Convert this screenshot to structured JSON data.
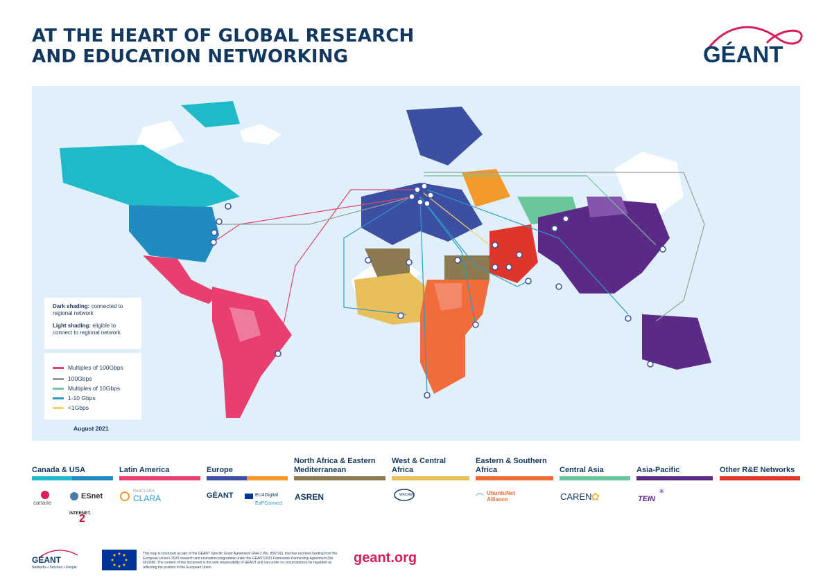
{
  "title": {
    "line1": "AT THE HEART OF GLOBAL RESEARCH",
    "line2": "AND EDUCATION NETWORKING"
  },
  "brand": {
    "name": "GÉANT",
    "colors": {
      "navy": "#0e3a66",
      "pink": "#d71f5a"
    }
  },
  "map": {
    "info": {
      "dark_label": "Dark shading:",
      "dark_text": " connected to regional network",
      "light_label": "Light shading:",
      "light_text": " eligible to connect to regional network"
    },
    "legend": [
      {
        "label": "Multiples of 100Gbps",
        "color": "#e0446a"
      },
      {
        "label": "100Gbps",
        "color": "#9c9c9c"
      },
      {
        "label": "Multiples of 10Gbps",
        "color": "#6cc69b"
      },
      {
        "label": "1-10 Gbps",
        "color": "#2a9bc8"
      },
      {
        "label": "<1Gbps",
        "color": "#f2d26a"
      }
    ],
    "date": "August 2021"
  },
  "regions": [
    {
      "label": "Canada & USA",
      "colors": [
        "#20b9c8",
        "#1f8bbf"
      ]
    },
    {
      "label": "Latin America",
      "colors": [
        "#e83f6f"
      ]
    },
    {
      "label": "Europe",
      "colors": [
        "#3c4fa1",
        "#f39a2b"
      ]
    },
    {
      "label": "North Africa & Eastern Mediterranean",
      "colors": [
        "#8c7a50"
      ]
    },
    {
      "label": "West & Central Africa",
      "colors": [
        "#e8bf5a"
      ]
    },
    {
      "label": "Eastern & Southern Africa",
      "colors": [
        "#f26b3a"
      ]
    },
    {
      "label": "Central Asia",
      "colors": [
        "#6cc69b"
      ]
    },
    {
      "label": "Asia-Pacific",
      "colors": [
        "#5b2a86"
      ]
    },
    {
      "label": "Other R&E Networks",
      "colors": [
        "#e0352b"
      ]
    }
  ],
  "orgs": {
    "canarie": "canarie",
    "esnet": "ESnet",
    "internet2": "INTERNET.",
    "clara": "CLARA",
    "red": "RedCLARA",
    "geant_small": "GÉANT",
    "eu4digital": "EU4Digital",
    "eapconnect": "EaPConnect",
    "asren": "ASREN",
    "wacren": "WACREN",
    "ubuntunet": "UbuntuNet",
    "alliance": "Alliance",
    "caren": "CAREN",
    "tein": "TEIN"
  },
  "footer": {
    "logo": "GÉANT",
    "tagline": "Networks • Services • People",
    "disclaimer": "This map is produced as part of the GÉANT Specific Grant Agreement GN4-3 (No. 856726), that has received funding from the European Union's 2020 research and innovation programme under the GÉANT2020 Framework Partnership Agreement (No. 653998). The content of this document is the sole responsibility of GÉANT and can under no circumstances be regarded as reflecting the position of the European Union.",
    "url": "geant.org"
  }
}
